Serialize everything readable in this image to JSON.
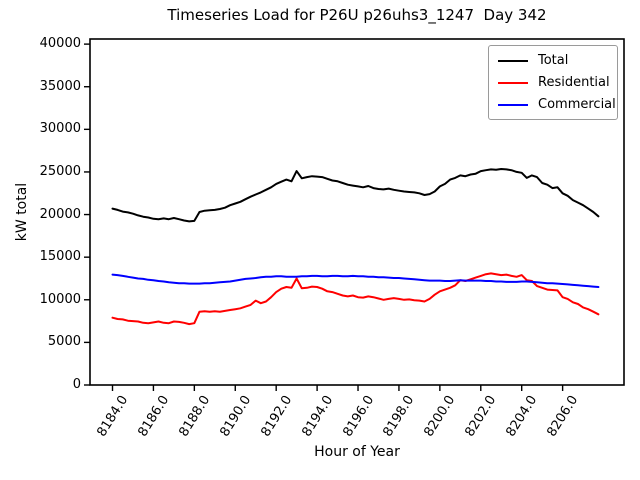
{
  "chart_data": {
    "type": "line",
    "title": "Timeseries Load for P26U p26uhs3_1247  Day 342",
    "xlabel": "Hour of Year",
    "ylabel": "kW total",
    "grid": false,
    "legend_position": "upper right",
    "xlim": [
      8182.9,
      8209.0
    ],
    "ylim": [
      0,
      40600
    ],
    "xticks": [
      8184,
      8186,
      8188,
      8190,
      8192,
      8194,
      8196,
      8198,
      8200,
      8202,
      8204,
      8206
    ],
    "xtick_labels": [
      "8184.0",
      "8186.0",
      "8188.0",
      "8190.0",
      "8192.0",
      "8194.0",
      "8196.0",
      "8198.0",
      "8200.0",
      "8202.0",
      "8204.0",
      "8206.0"
    ],
    "yticks": [
      0,
      5000,
      10000,
      15000,
      20000,
      25000,
      30000,
      35000,
      40000
    ],
    "ytick_labels": [
      "0",
      "5000",
      "10000",
      "15000",
      "20000",
      "25000",
      "30000",
      "35000",
      "40000"
    ],
    "x_start": 8184.0,
    "x_step": 0.25,
    "series": [
      {
        "name": "Total",
        "color": "#000000",
        "values": [
          20700,
          20550,
          20350,
          20250,
          20100,
          19900,
          19750,
          19650,
          19500,
          19450,
          19550,
          19450,
          19600,
          19450,
          19300,
          19200,
          19250,
          20300,
          20450,
          20500,
          20550,
          20650,
          20800,
          21100,
          21300,
          21500,
          21800,
          22100,
          22350,
          22600,
          22900,
          23200,
          23600,
          23850,
          24100,
          23900,
          25100,
          24250,
          24400,
          24500,
          24450,
          24400,
          24200,
          24000,
          23900,
          23700,
          23500,
          23400,
          23300,
          23200,
          23350,
          23100,
          23000,
          22950,
          23050,
          22900,
          22800,
          22700,
          22650,
          22600,
          22500,
          22300,
          22400,
          22700,
          23300,
          23600,
          24100,
          24300,
          24600,
          24500,
          24700,
          24800,
          25100,
          25200,
          25300,
          25250,
          25350,
          25300,
          25200,
          25000,
          24900,
          24300,
          24600,
          24400,
          23700,
          23500,
          23100,
          23200,
          22500,
          22200,
          21700,
          21400,
          21100,
          20700,
          20300,
          19800
        ]
      },
      {
        "name": "Residential",
        "color": "#ff0000",
        "values": [
          7900,
          7750,
          7700,
          7550,
          7500,
          7450,
          7300,
          7250,
          7350,
          7450,
          7300,
          7250,
          7450,
          7400,
          7300,
          7150,
          7250,
          8600,
          8650,
          8600,
          8650,
          8600,
          8700,
          8800,
          8900,
          9000,
          9200,
          9400,
          9900,
          9600,
          9800,
          10300,
          10900,
          11300,
          11500,
          11400,
          12500,
          11350,
          11400,
          11550,
          11500,
          11300,
          11000,
          10900,
          10700,
          10500,
          10400,
          10500,
          10300,
          10250,
          10400,
          10300,
          10150,
          10000,
          10100,
          10200,
          10100,
          10000,
          10050,
          9950,
          9900,
          9800,
          10100,
          10600,
          11000,
          11200,
          11400,
          11700,
          12300,
          12200,
          12400,
          12600,
          12800,
          13000,
          13100,
          13000,
          12900,
          12950,
          12800,
          12700,
          12900,
          12300,
          12200,
          11600,
          11400,
          11200,
          11150,
          11100,
          10300,
          10100,
          9700,
          9500,
          9100,
          8900,
          8600,
          8300
        ]
      },
      {
        "name": "Commercial",
        "color": "#0000ff",
        "values": [
          12950,
          12900,
          12800,
          12700,
          12600,
          12500,
          12450,
          12350,
          12300,
          12200,
          12150,
          12050,
          12000,
          11950,
          11950,
          11900,
          11900,
          11900,
          11950,
          11950,
          12000,
          12050,
          12100,
          12150,
          12250,
          12350,
          12450,
          12500,
          12550,
          12650,
          12700,
          12700,
          12750,
          12750,
          12700,
          12700,
          12700,
          12750,
          12750,
          12800,
          12800,
          12750,
          12750,
          12800,
          12800,
          12750,
          12750,
          12800,
          12750,
          12750,
          12700,
          12700,
          12650,
          12650,
          12600,
          12550,
          12550,
          12500,
          12450,
          12400,
          12350,
          12300,
          12250,
          12250,
          12250,
          12200,
          12200,
          12250,
          12300,
          12250,
          12250,
          12250,
          12250,
          12200,
          12200,
          12150,
          12150,
          12100,
          12100,
          12100,
          12150,
          12150,
          12100,
          12050,
          12000,
          11950,
          11950,
          11900,
          11850,
          11800,
          11750,
          11700,
          11650,
          11600,
          11550,
          11500
        ]
      }
    ]
  }
}
